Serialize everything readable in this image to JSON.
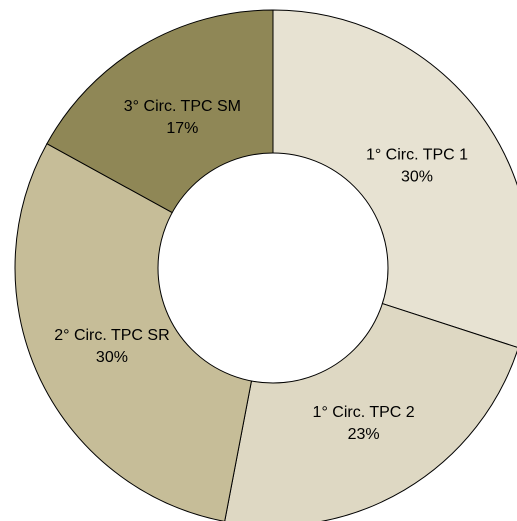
{
  "chart_data": {
    "type": "pie",
    "variant": "donut",
    "slices": [
      {
        "label": "1° Circ. TPC 1",
        "percent_label": "30%",
        "value": 30,
        "color": "#e7e2d2"
      },
      {
        "label": "1° Circ. TPC 2",
        "percent_label": "23%",
        "value": 23,
        "color": "#ded8c3"
      },
      {
        "label": "2° Circ. TPC SR",
        "percent_label": "30%",
        "value": 30,
        "color": "#c6bd98"
      },
      {
        "label": "3° Circ. TPC SM",
        "percent_label": "17%",
        "value": 17,
        "color": "#8f8756"
      }
    ]
  }
}
